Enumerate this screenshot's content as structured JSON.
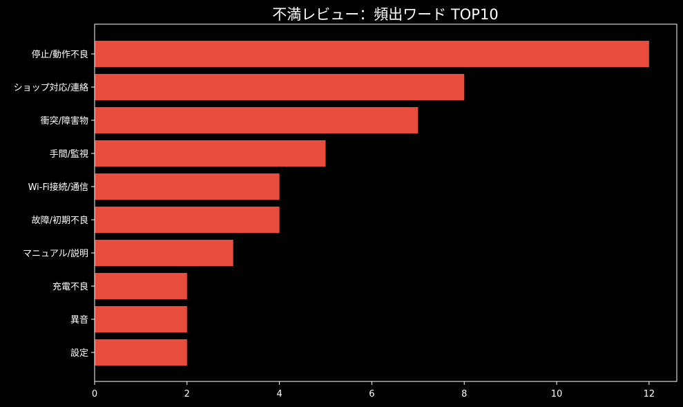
{
  "chart_data": {
    "type": "bar",
    "orientation": "horizontal",
    "title": "不満レビュー：頻出ワード TOP10",
    "xlabel": "",
    "ylabel": "",
    "categories": [
      "停止/動作不良",
      "ショップ対応/連絡",
      "衝突/障害物",
      "手間/監視",
      "Wi-Fi接続/通信",
      "故障/初期不良",
      "マニュアル/説明",
      "充電不良",
      "異音",
      "設定"
    ],
    "values": [
      12,
      8,
      7,
      5,
      4,
      4,
      3,
      2,
      2,
      2
    ],
    "xlim": [
      0,
      12.6
    ],
    "xticks": [
      0,
      2,
      4,
      6,
      8,
      10,
      12
    ],
    "bar_color": "#e74c3c",
    "background_color": "#000000",
    "grid": false,
    "legend": "none"
  }
}
